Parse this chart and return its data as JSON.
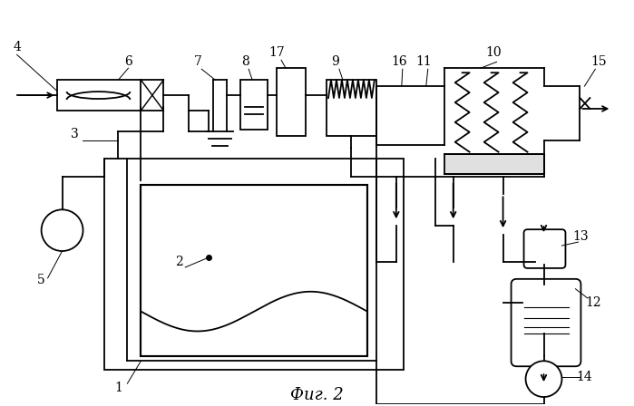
{
  "title": "Фиг. 2",
  "bg": "white",
  "lc": "black",
  "lw": 1.3,
  "figsize": [
    6.99,
    4.48
  ],
  "dpi": 100
}
